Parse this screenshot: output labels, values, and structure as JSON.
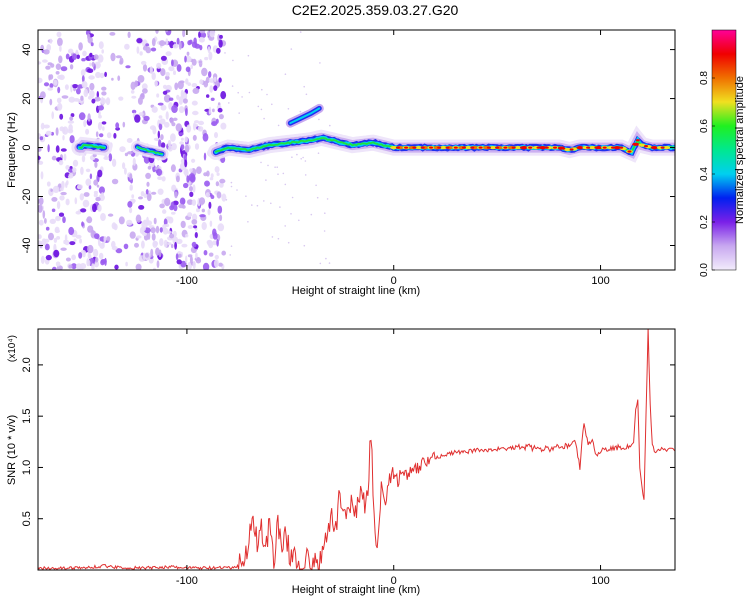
{
  "figure": {
    "title": "C2E2.2025.359.03.27.G20"
  },
  "chart_data": [
    {
      "type": "heatmap",
      "title": "C2E2.2025.359.03.27.G20",
      "xlabel": "Height of straight line (km)",
      "ylabel": "Frequency (Hz)",
      "xlim": [
        -172,
        136
      ],
      "ylim": [
        -50,
        48
      ],
      "xticks": [
        -100,
        0,
        100
      ],
      "yticks": [
        -40,
        -20,
        0,
        20,
        40
      ],
      "xtick_labels": [
        "-100",
        "0",
        "100"
      ],
      "ytick_labels": [
        "-40",
        "-20",
        "0",
        "20",
        "40"
      ],
      "colorbar": {
        "label": "Normalized spectral amplitude",
        "range": [
          0.0,
          1.0
        ],
        "ticks": [
          0.0,
          0.2,
          0.4,
          0.6,
          0.8
        ],
        "tick_labels": [
          "0.0",
          "0.2",
          "0.4",
          "0.6",
          "0.8"
        ],
        "colormap": [
          "#f0e8fa",
          "#c8a8f0",
          "#7a20e8",
          "#0020f0",
          "#00d8f0",
          "#20f020",
          "#f0e020",
          "#f07000",
          "#f00000",
          "#ff0098"
        ]
      },
      "ridge": {
        "description_points_x": [
          -150,
          -140,
          -130,
          -120,
          -110,
          -100,
          -90,
          -80,
          -70,
          -60,
          -50,
          -40,
          -35,
          -30,
          -20,
          -10,
          0,
          20,
          40,
          60,
          80,
          85,
          90,
          100,
          110,
          115,
          118,
          120,
          125,
          136
        ],
        "description_points_y": [
          1,
          0,
          2,
          -1,
          -3,
          -2,
          -3,
          0,
          -1,
          1,
          2,
          3,
          4,
          3,
          1,
          2,
          0,
          0,
          0,
          0,
          0,
          -1,
          0,
          0,
          0,
          -2,
          3,
          1,
          0,
          0
        ]
      },
      "side_branch": {
        "x": [
          -50,
          -45,
          -40,
          -36
        ],
        "y": [
          10,
          12,
          14,
          16
        ]
      },
      "noise_region_x": [
        -172,
        -82
      ],
      "grid": false
    },
    {
      "type": "line",
      "xlabel": "Height of straight line (km)",
      "ylabel": "SNR (10 * v/v)",
      "y_multiplier": "(x10⁴)",
      "xlim": [
        -172,
        136
      ],
      "ylim": [
        0,
        2.35
      ],
      "xticks": [
        -100,
        0,
        100
      ],
      "yticks": [
        0.5,
        1.0,
        1.5,
        2.0
      ],
      "xtick_labels": [
        "-100",
        "0",
        "100"
      ],
      "ytick_labels": [
        "0.5",
        "1.0",
        "1.5",
        "2.0"
      ],
      "color": "#e03030",
      "grid": false,
      "series": [
        {
          "x": [
            -172,
            -150,
            -140,
            -130,
            -120,
            -110,
            -100,
            -90,
            -85,
            -80,
            -76,
            -74,
            -72,
            -70,
            -68,
            -66,
            -64,
            -62,
            -60,
            -58,
            -56,
            -54,
            -52,
            -50,
            -48,
            -46,
            -44,
            -42,
            -40,
            -38,
            -36,
            -34,
            -32,
            -30,
            -28,
            -26,
            -24,
            -22,
            -20,
            -18,
            -16,
            -14,
            -12,
            -11,
            -10,
            -9,
            -8,
            -6,
            -4,
            -2,
            0,
            2,
            4,
            6,
            8,
            10,
            12,
            14,
            16,
            18,
            20,
            25,
            30,
            35,
            40,
            45,
            50,
            55,
            60,
            65,
            70,
            75,
            80,
            85,
            88,
            90,
            92,
            94,
            96,
            98,
            100,
            105,
            110,
            114,
            116,
            117,
            118,
            119,
            120,
            121,
            122,
            123,
            124,
            125,
            126,
            128,
            130,
            132,
            134,
            136
          ],
          "y": [
            0.02,
            0.02,
            0.04,
            0.02,
            0.02,
            0.03,
            0.02,
            0.02,
            0.02,
            0.02,
            0.03,
            0.05,
            0.12,
            0.3,
            0.55,
            0.25,
            0.45,
            0.15,
            0.5,
            0.1,
            0.45,
            0.2,
            0.35,
            0.1,
            0.2,
            0.05,
            0.05,
            0.1,
            0.05,
            0.05,
            0.1,
            0.2,
            0.3,
            0.55,
            0.4,
            0.75,
            0.5,
            0.6,
            0.7,
            0.55,
            0.8,
            0.6,
            0.9,
            1.38,
            0.75,
            0.4,
            0.15,
            0.85,
            0.7,
            0.9,
            0.95,
            0.85,
            1.0,
            0.9,
            0.95,
            0.95,
            1.0,
            1.05,
            1.05,
            1.1,
            1.1,
            1.12,
            1.15,
            1.15,
            1.17,
            1.17,
            1.18,
            1.18,
            1.2,
            1.2,
            1.18,
            1.18,
            1.2,
            1.22,
            1.25,
            1.0,
            1.45,
            1.2,
            1.3,
            1.1,
            1.17,
            1.18,
            1.2,
            1.2,
            1.25,
            1.55,
            1.68,
            1.0,
            0.8,
            0.68,
            1.5,
            2.35,
            1.6,
            1.22,
            1.15,
            1.18,
            1.18,
            1.17,
            1.18,
            1.17
          ]
        }
      ]
    }
  ]
}
